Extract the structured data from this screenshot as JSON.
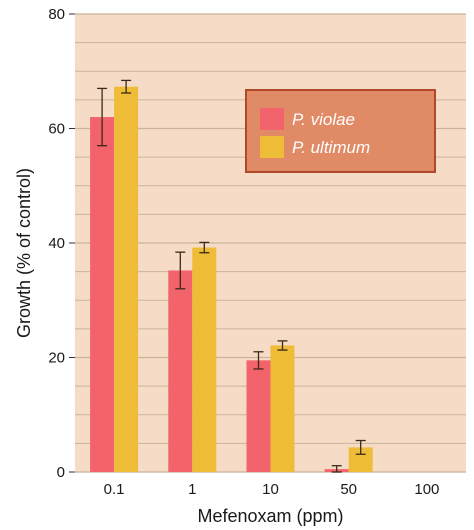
{
  "chart_data": {
    "type": "bar",
    "title": "",
    "xlabel": "Mefenoxam (ppm)",
    "ylabel": "Growth (% of control)",
    "ylim": [
      0,
      80
    ],
    "yticks": [
      0,
      20,
      40,
      60,
      80
    ],
    "categories": [
      "0.1",
      "1",
      "10",
      "50",
      "100"
    ],
    "series": [
      {
        "name": "P. violae",
        "values": [
          62,
          35.2,
          19.5,
          0.5,
          0
        ],
        "errors": [
          5,
          3.2,
          1.5,
          0.6,
          0
        ],
        "color": "#f2636b"
      },
      {
        "name": "P. ultimum",
        "values": [
          67.3,
          39.2,
          22.1,
          4.3,
          0
        ],
        "errors": [
          1.1,
          0.9,
          0.8,
          1.2,
          0
        ],
        "color": "#eebc37"
      }
    ],
    "grid": true,
    "legend_position": "top-right",
    "colors": {
      "plot_background": "#f6dcc6",
      "gridline": "#c9b49b",
      "legend_background": "#e08a66",
      "legend_border": "#b0482a"
    }
  }
}
